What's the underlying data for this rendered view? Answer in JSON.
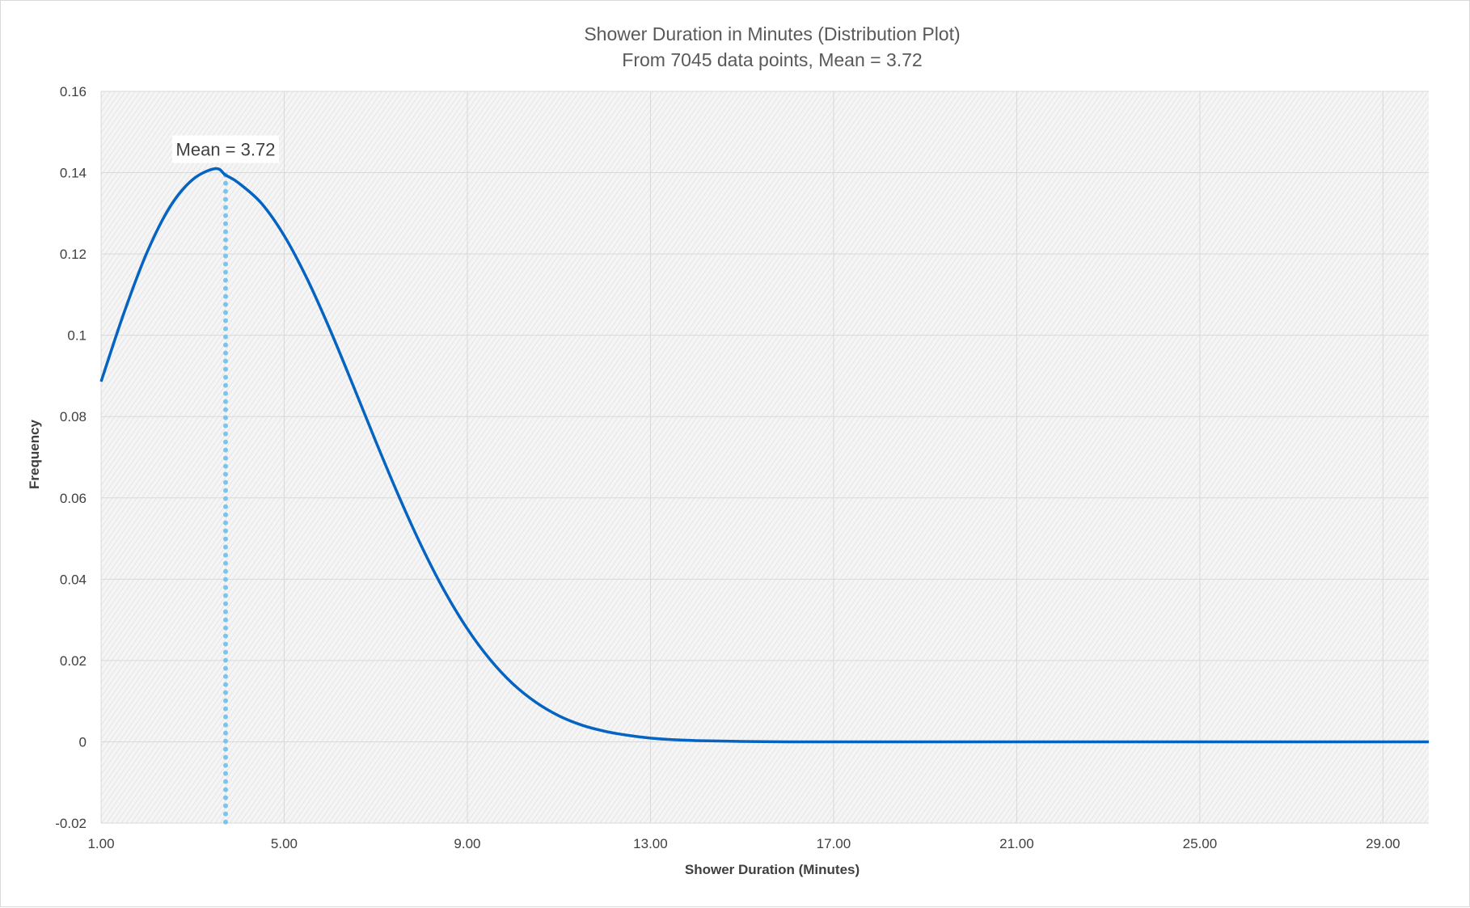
{
  "chart_data": {
    "type": "line",
    "title": "Shower Duration in Minutes (Distribution Plot)",
    "subtitle": "From 7045 data points, Mean = 3.72",
    "xlabel": "Shower Duration (Minutes)",
    "ylabel": "Frequency",
    "xlim": [
      1.0,
      30.0
    ],
    "ylim": [
      -0.02,
      0.16
    ],
    "x_ticks": [
      "1.00",
      "5.00",
      "9.00",
      "13.00",
      "17.00",
      "21.00",
      "25.00",
      "29.00"
    ],
    "y_ticks": [
      "-0.02",
      "0",
      "0.02",
      "0.04",
      "0.06",
      "0.08",
      "0.1",
      "0.12",
      "0.14",
      "0.16"
    ],
    "grid": true,
    "series": [
      {
        "x": [
          1.0,
          1.5,
          2.0,
          2.5,
          3.0,
          3.5,
          3.72,
          4.0,
          4.5,
          5.0,
          5.5,
          6.0,
          6.5,
          7.0,
          7.5,
          8.0,
          8.5,
          9.0,
          9.5,
          10.0,
          10.5,
          11.0,
          11.5,
          12.0,
          12.5,
          13.0,
          13.5,
          14.0,
          15.0,
          16.0,
          17.0,
          18.0,
          19.0,
          20.0,
          21.0,
          22.0,
          23.0,
          24.0,
          25.0,
          26.0,
          27.0,
          28.0,
          29.0,
          30.0
        ],
        "values": [
          0.0886,
          0.1055,
          0.1203,
          0.1315,
          0.1383,
          0.141,
          0.1394,
          0.1375,
          0.1325,
          0.1245,
          0.1139,
          0.1014,
          0.0878,
          0.0739,
          0.0605,
          0.0481,
          0.0371,
          0.0278,
          0.0202,
          0.0142,
          0.0097,
          0.0064,
          0.0041,
          0.0026,
          0.0016,
          0.0009,
          0.0005,
          0.0003,
          0.0001,
          0.0,
          0.0,
          0.0,
          0.0,
          0.0,
          0.0,
          0.0,
          0.0,
          0.0,
          0.0,
          0.0,
          0.0,
          0.0,
          0.0,
          0.0
        ],
        "color": "#0563c1"
      }
    ],
    "annotations": [
      {
        "text": "Mean = 3.72",
        "x": 3.72,
        "y_top": 0.1394,
        "y_bottom": -0.02,
        "line_color": "#7ec3e8",
        "line_style": "dotted"
      }
    ],
    "plot_background": "#f2f2f2",
    "grid_color": "#d9d9d9"
  }
}
